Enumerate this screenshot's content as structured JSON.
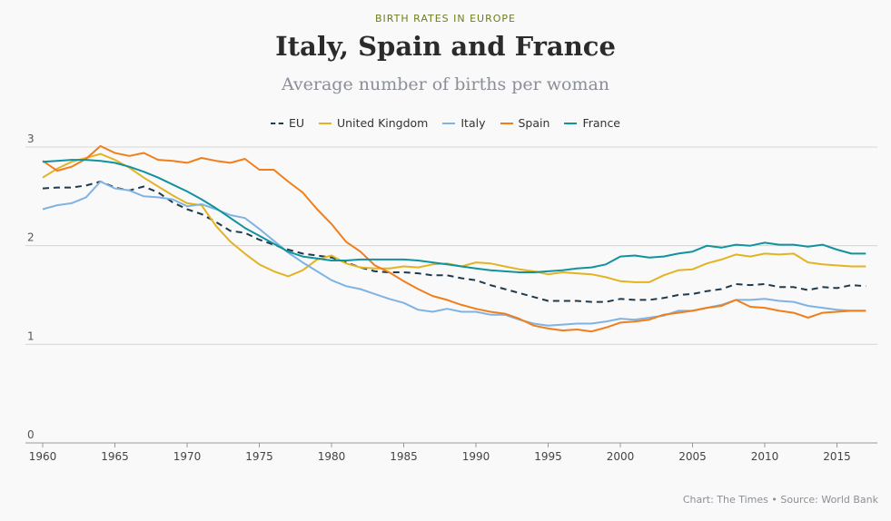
{
  "header": {
    "kicker": "BIRTH RATES IN EUROPE",
    "title": "Italy, Spain and France",
    "subtitle": "Average number of births per woman"
  },
  "source": "Chart: The Times • Source: World Bank",
  "chart_data": {
    "type": "line",
    "ylim": [
      0,
      3
    ],
    "xlim": [
      1960,
      2017
    ],
    "y_ticks": [
      "0",
      "1",
      "2",
      "3"
    ],
    "x_ticks": [
      "1960",
      "1965",
      "1970",
      "1975",
      "1980",
      "1985",
      "1990",
      "1995",
      "2000",
      "2005",
      "2010",
      "2015"
    ],
    "grid": "horizontal",
    "legend_position": "top",
    "x_start": 1960,
    "series": [
      {
        "name": "EU",
        "color": "#1f3a4d",
        "dashed": true,
        "values": [
          2.58,
          2.59,
          2.59,
          2.61,
          2.65,
          2.59,
          2.56,
          2.6,
          2.54,
          2.44,
          2.37,
          2.32,
          2.24,
          2.15,
          2.13,
          2.06,
          2.01,
          1.96,
          1.92,
          1.9,
          1.88,
          1.83,
          1.78,
          1.74,
          1.73,
          1.73,
          1.72,
          1.7,
          1.7,
          1.67,
          1.65,
          1.6,
          1.56,
          1.52,
          1.48,
          1.44,
          1.44,
          1.44,
          1.43,
          1.43,
          1.46,
          1.45,
          1.45,
          1.47,
          1.5,
          1.51,
          1.54,
          1.56,
          1.61,
          1.6,
          1.61,
          1.58,
          1.58,
          1.55,
          1.58,
          1.57,
          1.6,
          1.59
        ]
      },
      {
        "name": "United Kingdom",
        "color": "#e3b322",
        "dashed": false,
        "values": [
          2.69,
          2.78,
          2.85,
          2.89,
          2.93,
          2.87,
          2.79,
          2.69,
          2.6,
          2.51,
          2.43,
          2.41,
          2.2,
          2.04,
          1.92,
          1.81,
          1.74,
          1.69,
          1.75,
          1.86,
          1.9,
          1.82,
          1.78,
          1.77,
          1.77,
          1.79,
          1.78,
          1.81,
          1.82,
          1.79,
          1.83,
          1.82,
          1.79,
          1.76,
          1.74,
          1.71,
          1.73,
          1.72,
          1.71,
          1.68,
          1.64,
          1.63,
          1.63,
          1.7,
          1.75,
          1.76,
          1.82,
          1.86,
          1.91,
          1.89,
          1.92,
          1.91,
          1.92,
          1.83,
          1.81,
          1.8,
          1.79,
          1.79
        ]
      },
      {
        "name": "Italy",
        "color": "#7fb3e3",
        "dashed": false,
        "values": [
          2.37,
          2.41,
          2.43,
          2.49,
          2.65,
          2.58,
          2.56,
          2.5,
          2.49,
          2.47,
          2.4,
          2.42,
          2.37,
          2.31,
          2.28,
          2.17,
          2.05,
          1.93,
          1.83,
          1.74,
          1.65,
          1.59,
          1.56,
          1.51,
          1.46,
          1.42,
          1.35,
          1.33,
          1.36,
          1.33,
          1.33,
          1.3,
          1.3,
          1.25,
          1.21,
          1.19,
          1.2,
          1.21,
          1.21,
          1.23,
          1.26,
          1.25,
          1.27,
          1.29,
          1.34,
          1.34,
          1.37,
          1.4,
          1.45,
          1.45,
          1.46,
          1.44,
          1.43,
          1.39,
          1.37,
          1.35,
          1.34,
          1.34
        ]
      },
      {
        "name": "Spain",
        "color": "#f07e1a",
        "dashed": false,
        "values": [
          2.86,
          2.76,
          2.8,
          2.88,
          3.01,
          2.94,
          2.91,
          2.94,
          2.87,
          2.86,
          2.84,
          2.89,
          2.86,
          2.84,
          2.88,
          2.77,
          2.77,
          2.65,
          2.54,
          2.37,
          2.22,
          2.04,
          1.94,
          1.8,
          1.73,
          1.64,
          1.56,
          1.49,
          1.45,
          1.4,
          1.36,
          1.33,
          1.31,
          1.26,
          1.19,
          1.16,
          1.14,
          1.15,
          1.13,
          1.17,
          1.22,
          1.23,
          1.25,
          1.3,
          1.32,
          1.34,
          1.37,
          1.39,
          1.45,
          1.38,
          1.37,
          1.34,
          1.32,
          1.27,
          1.32,
          1.33,
          1.34,
          1.34
        ]
      },
      {
        "name": "France",
        "color": "#11929f",
        "dashed": false,
        "values": [
          2.85,
          2.86,
          2.87,
          2.87,
          2.86,
          2.84,
          2.8,
          2.75,
          2.69,
          2.62,
          2.55,
          2.47,
          2.38,
          2.28,
          2.18,
          2.1,
          2.02,
          1.94,
          1.89,
          1.87,
          1.85,
          1.85,
          1.86,
          1.86,
          1.86,
          1.86,
          1.85,
          1.83,
          1.81,
          1.79,
          1.77,
          1.75,
          1.74,
          1.73,
          1.73,
          1.74,
          1.75,
          1.77,
          1.78,
          1.81,
          1.89,
          1.9,
          1.88,
          1.89,
          1.92,
          1.94,
          2.0,
          1.98,
          2.01,
          2.0,
          2.03,
          2.01,
          2.01,
          1.99,
          2.01,
          1.96,
          1.92,
          1.92
        ]
      }
    ]
  }
}
